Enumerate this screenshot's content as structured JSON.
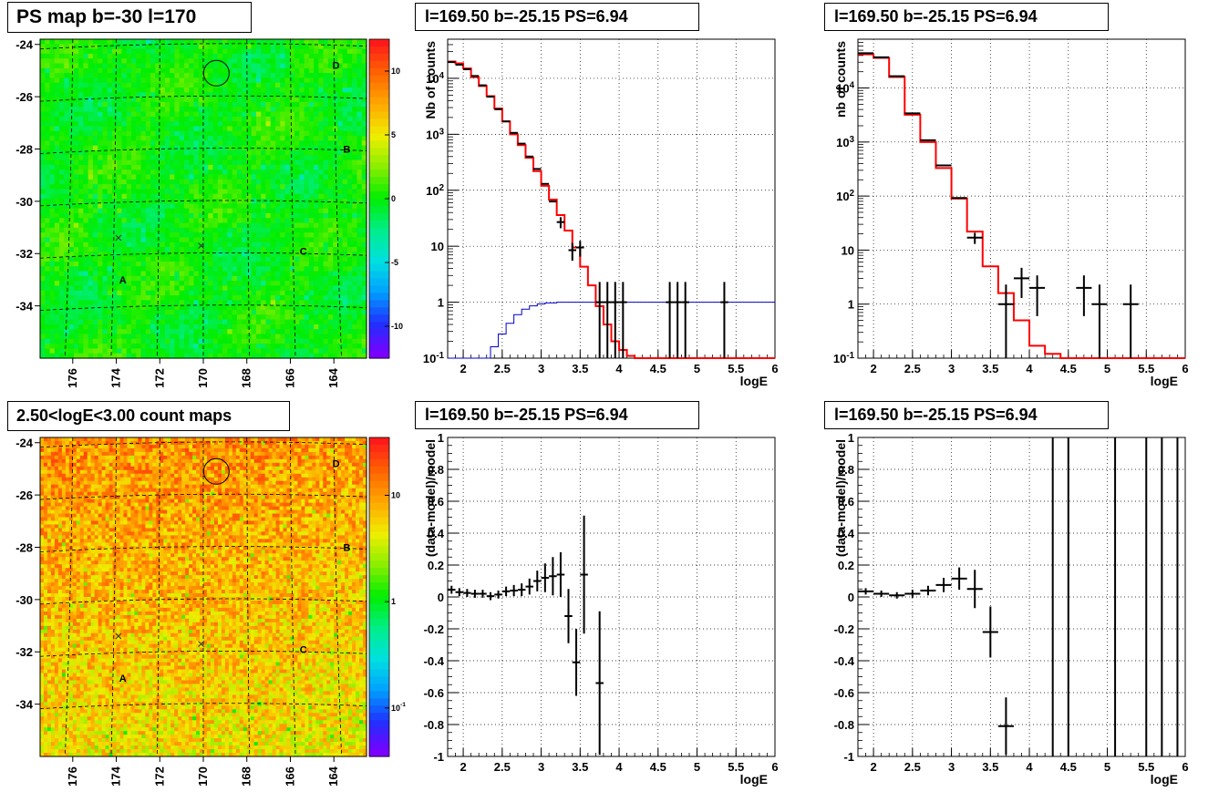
{
  "colors": {
    "data": "#000000",
    "model": "#ff0000",
    "efficiency": "#0000cc",
    "grid": "#000000",
    "palette": [
      "#7b00ff",
      "#2030ff",
      "#00a0ff",
      "#00e0e0",
      "#00ee88",
      "#00ee00",
      "#88ee00",
      "#eeee00",
      "#ffaa00",
      "#ff6600",
      "#ff1a1a"
    ]
  },
  "chart_data": [
    {
      "type": "heatmap",
      "title": "PS map b=-30 l=170",
      "x_ticks": [
        "176",
        "174",
        "172",
        "170",
        "168",
        "166",
        "164"
      ],
      "y_ticks": [
        "-24",
        "-26",
        "-28",
        "-30",
        "-32",
        "-34"
      ],
      "xlim": [
        177.5,
        162.5
      ],
      "ylim": [
        -36,
        -23.8
      ],
      "colorbar_ticks": [
        "10",
        "5",
        "0",
        "-5",
        "-10"
      ],
      "colorbar_values": [
        10,
        5,
        0,
        -5,
        -10
      ],
      "colorbar_range": [
        -12.5,
        12.5
      ],
      "sources": [
        {
          "label": "A",
          "l": 173.7,
          "b": -33.0
        },
        {
          "label": "B",
          "l": 163.4,
          "b": -28.0
        },
        {
          "label": "C",
          "l": 165.4,
          "b": -31.9
        },
        {
          "label": "D",
          "l": 163.9,
          "b": -24.8
        }
      ],
      "crosses": [
        {
          "l": 173.9,
          "b": -31.4
        },
        {
          "l": 170.1,
          "b": -31.7
        }
      ],
      "circle": {
        "l": 169.4,
        "b": -25.1
      }
    },
    {
      "type": "line",
      "title": "l=169.50 b=-25.15 PS=6.94",
      "xlabel": "logE",
      "ylabel": "Nb of counts",
      "log_y": true,
      "xlim": [
        1.8,
        6
      ],
      "ylim": [
        0.1,
        50000
      ],
      "x_ticks": [
        "2",
        "2.5",
        "3",
        "3.5",
        "4",
        "4.5",
        "5",
        "5.5",
        "6"
      ],
      "y_ticks": [
        "10^{-1}",
        "1",
        "10",
        "10^{2}",
        "10^{3}",
        "10^{4}"
      ],
      "model_step": {
        "edges": [
          1.8,
          1.9,
          2.0,
          2.1,
          2.2,
          2.3,
          2.4,
          2.5,
          2.6,
          2.7,
          2.8,
          2.9,
          3.0,
          3.1,
          3.2,
          3.3,
          3.4,
          3.5,
          3.6,
          3.7,
          3.8,
          3.9,
          4.0,
          4.1,
          4.2,
          4.3,
          6.0
        ],
        "values": [
          20000,
          18500,
          15000,
          10500,
          7300,
          4800,
          2900,
          1700,
          1000,
          640,
          380,
          220,
          120,
          68,
          36,
          19,
          9.5,
          4.3,
          2.0,
          0.85,
          0.4,
          0.2,
          0.14,
          0.11,
          0.1,
          0.1
        ]
      },
      "efficiency_step": {
        "edges": [
          1.8,
          2.3,
          2.35,
          2.45,
          2.55,
          2.65,
          2.75,
          2.85,
          2.95,
          3.05,
          3.2,
          6.0
        ],
        "values": [
          0.05,
          0.09,
          0.16,
          0.27,
          0.42,
          0.6,
          0.75,
          0.86,
          0.93,
          0.97,
          1.0
        ]
      },
      "data_points": [
        {
          "x": 1.85,
          "y": 19500,
          "xe": 0.05
        },
        {
          "x": 1.95,
          "y": 17500,
          "xe": 0.05
        },
        {
          "x": 2.05,
          "y": 14500,
          "xe": 0.05
        },
        {
          "x": 2.15,
          "y": 11000,
          "xe": 0.05
        },
        {
          "x": 2.25,
          "y": 7500,
          "xe": 0.05
        },
        {
          "x": 2.35,
          "y": 4700,
          "xe": 0.05
        },
        {
          "x": 2.45,
          "y": 2800,
          "xe": 0.05
        },
        {
          "x": 2.55,
          "y": 1700,
          "xe": 0.05
        },
        {
          "x": 2.65,
          "y": 1060,
          "xe": 0.05
        },
        {
          "x": 2.75,
          "y": 680,
          "xe": 0.05
        },
        {
          "x": 2.85,
          "y": 400,
          "xe": 0.05
        },
        {
          "x": 2.95,
          "y": 240,
          "xe": 0.05
        },
        {
          "x": 3.05,
          "y": 130,
          "xe": 0.05
        },
        {
          "x": 3.15,
          "y": 63,
          "xe": 0.05
        },
        {
          "x": 3.25,
          "y": 27,
          "xe": 0.05,
          "ye": 6
        },
        {
          "x": 3.4,
          "y": 8.5,
          "xe": 0.05,
          "ye": 3
        },
        {
          "x": 3.5,
          "y": 9.5,
          "xe": 0.05,
          "ye": 3
        },
        {
          "x": 3.75,
          "y": 1,
          "xe": 0.05,
          "ylo": 0.1,
          "yhi": 2.3
        },
        {
          "x": 3.85,
          "y": 1,
          "xe": 0.05,
          "ylo": 0.1,
          "yhi": 2.3
        },
        {
          "x": 3.95,
          "y": 1,
          "xe": 0.05,
          "ylo": 0.1,
          "yhi": 2.3
        },
        {
          "x": 4.05,
          "y": 1,
          "xe": 0.05,
          "ylo": 0.1,
          "yhi": 2.3
        },
        {
          "x": 4.65,
          "y": 1,
          "xe": 0.05,
          "ylo": 0.1,
          "yhi": 2.3
        },
        {
          "x": 4.75,
          "y": 1,
          "xe": 0.05,
          "ylo": 0.1,
          "yhi": 2.3
        },
        {
          "x": 4.85,
          "y": 1,
          "xe": 0.05,
          "ylo": 0.1,
          "yhi": 2.3
        },
        {
          "x": 5.35,
          "y": 1,
          "xe": 0.05,
          "ylo": 0.1,
          "yhi": 2.3
        }
      ]
    },
    {
      "type": "line",
      "title": "l=169.50 b=-25.15 PS=6.94",
      "xlabel": "logE",
      "ylabel": "nb of counts",
      "log_y": true,
      "xlim": [
        1.8,
        6
      ],
      "ylim": [
        0.1,
        80000
      ],
      "x_ticks": [
        "2",
        "2.5",
        "3",
        "3.5",
        "4",
        "4.5",
        "5",
        "5.5",
        "6"
      ],
      "y_ticks": [
        "10^{-1}",
        "1",
        "10",
        "10^{2}",
        "10^{3}",
        "10^{4}"
      ],
      "model_step": {
        "edges": [
          1.8,
          2.0,
          2.2,
          2.4,
          2.6,
          2.8,
          3.0,
          3.2,
          3.4,
          3.6,
          3.8,
          4.0,
          4.2,
          4.4,
          6.0
        ],
        "values": [
          42000,
          36000,
          16000,
          3200,
          1000,
          330,
          90,
          22,
          5,
          1.6,
          0.5,
          0.17,
          0.12,
          0.1
        ]
      },
      "data_points": [
        {
          "x": 1.9,
          "y": 44000,
          "xe": 0.1
        },
        {
          "x": 2.1,
          "y": 37000,
          "xe": 0.1
        },
        {
          "x": 2.3,
          "y": 16500,
          "xe": 0.1
        },
        {
          "x": 2.5,
          "y": 3400,
          "xe": 0.1
        },
        {
          "x": 2.7,
          "y": 1080,
          "xe": 0.1
        },
        {
          "x": 2.9,
          "y": 370,
          "xe": 0.1
        },
        {
          "x": 3.1,
          "y": 92,
          "xe": 0.1
        },
        {
          "x": 3.3,
          "y": 17,
          "xe": 0.1,
          "ye": 4
        },
        {
          "x": 3.7,
          "y": 1,
          "xe": 0.1,
          "ylo": 0.1,
          "yhi": 2.3
        },
        {
          "x": 3.9,
          "y": 3,
          "xe": 0.1,
          "ye": 1.7
        },
        {
          "x": 4.1,
          "y": 2,
          "xe": 0.1,
          "ylo": 0.6,
          "yhi": 3.4
        },
        {
          "x": 4.7,
          "y": 2,
          "xe": 0.1,
          "ylo": 0.6,
          "yhi": 3.4
        },
        {
          "x": 4.9,
          "y": 1,
          "xe": 0.1,
          "ylo": 0.1,
          "yhi": 2.3
        },
        {
          "x": 5.3,
          "y": 1,
          "xe": 0.1,
          "ylo": 0.1,
          "yhi": 2.3
        }
      ]
    },
    {
      "type": "heatmap",
      "title": "2.50<logE<3.00 count maps",
      "x_ticks": [
        "176",
        "174",
        "172",
        "170",
        "168",
        "166",
        "164"
      ],
      "y_ticks": [
        "-24",
        "-26",
        "-28",
        "-30",
        "-32",
        "-34"
      ],
      "xlim": [
        177.5,
        162.5
      ],
      "ylim": [
        -36,
        -23.8
      ],
      "colorbar_ticks": [
        "10",
        "1",
        "10^{-1}"
      ],
      "colorbar_values": [
        10,
        1,
        0.1
      ],
      "colorbar_log_range": [
        0.035,
        35
      ],
      "sources": [
        {
          "label": "A",
          "l": 173.7,
          "b": -33.0
        },
        {
          "label": "B",
          "l": 163.4,
          "b": -28.0
        },
        {
          "label": "C",
          "l": 165.4,
          "b": -31.9
        },
        {
          "label": "D",
          "l": 163.9,
          "b": -24.8
        }
      ],
      "crosses": [
        {
          "l": 173.9,
          "b": -31.4
        },
        {
          "l": 170.1,
          "b": -31.7
        }
      ],
      "circle": {
        "l": 169.4,
        "b": -25.1
      }
    },
    {
      "type": "scatter",
      "title": "l=169.50 b=-25.15 PS=6.94",
      "xlabel": "logE",
      "ylabel": "(data-model)/model",
      "xlim": [
        1.8,
        6
      ],
      "ylim": [
        -1,
        1
      ],
      "x_ticks": [
        "2",
        "2.5",
        "3",
        "3.5",
        "4",
        "4.5",
        "5",
        "5.5",
        "6"
      ],
      "y_ticks": [
        "-1",
        "-0.8",
        "-0.6",
        "-0.4",
        "-0.2",
        "0",
        "0.2",
        "0.4",
        "0.6",
        "0.8",
        "1"
      ],
      "data_points": [
        {
          "x": 1.85,
          "y": 0.045,
          "xe": 0.05,
          "ye": 0.025
        },
        {
          "x": 1.95,
          "y": 0.03,
          "xe": 0.05,
          "ye": 0.025
        },
        {
          "x": 2.05,
          "y": 0.025,
          "xe": 0.05,
          "ye": 0.025
        },
        {
          "x": 2.15,
          "y": 0.02,
          "xe": 0.05,
          "ye": 0.025
        },
        {
          "x": 2.25,
          "y": 0.02,
          "xe": 0.05,
          "ye": 0.025
        },
        {
          "x": 2.35,
          "y": 0.005,
          "xe": 0.05,
          "ye": 0.025
        },
        {
          "x": 2.45,
          "y": 0.015,
          "xe": 0.05,
          "ye": 0.025
        },
        {
          "x": 2.55,
          "y": 0.035,
          "xe": 0.05,
          "ye": 0.03
        },
        {
          "x": 2.65,
          "y": 0.04,
          "xe": 0.05,
          "ye": 0.035
        },
        {
          "x": 2.75,
          "y": 0.045,
          "xe": 0.05,
          "ye": 0.04
        },
        {
          "x": 2.85,
          "y": 0.065,
          "xe": 0.05,
          "ye": 0.05
        },
        {
          "x": 2.95,
          "y": 0.1,
          "xe": 0.05,
          "ye": 0.065
        },
        {
          "x": 3.05,
          "y": 0.12,
          "xe": 0.05,
          "ye": 0.09
        },
        {
          "x": 3.15,
          "y": 0.13,
          "xe": 0.05,
          "ye": 0.12
        },
        {
          "x": 3.25,
          "y": 0.14,
          "xe": 0.05,
          "ye": 0.14
        },
        {
          "x": 3.35,
          "y": -0.12,
          "xe": 0.05,
          "ye": 0.17
        },
        {
          "x": 3.45,
          "y": -0.41,
          "xe": 0.05,
          "ye": 0.21
        },
        {
          "x": 3.55,
          "y": 0.14,
          "xe": 0.05,
          "ye": 0.37
        },
        {
          "x": 3.75,
          "y": -0.54,
          "xe": 0.05,
          "ye": 0.45
        }
      ]
    },
    {
      "type": "scatter",
      "title": "l=169.50 b=-25.15 PS=6.94",
      "xlabel": "logE",
      "ylabel": "(data-model)/model",
      "xlim": [
        1.8,
        6
      ],
      "ylim": [
        -1,
        1
      ],
      "x_ticks": [
        "2",
        "2.5",
        "3",
        "3.5",
        "4",
        "4.5",
        "5",
        "5.5",
        "6"
      ],
      "y_ticks": [
        "-1",
        "-0.8",
        "-0.6",
        "-0.4",
        "-0.2",
        "0",
        "0.2",
        "0.4",
        "0.6",
        "0.8",
        "1"
      ],
      "data_points": [
        {
          "x": 1.9,
          "y": 0.035,
          "xe": 0.1,
          "ye": 0.02
        },
        {
          "x": 2.1,
          "y": 0.02,
          "xe": 0.1,
          "ye": 0.02
        },
        {
          "x": 2.3,
          "y": 0.01,
          "xe": 0.1,
          "ye": 0.02
        },
        {
          "x": 2.5,
          "y": 0.02,
          "xe": 0.1,
          "ye": 0.025
        },
        {
          "x": 2.7,
          "y": 0.04,
          "xe": 0.1,
          "ye": 0.03
        },
        {
          "x": 2.9,
          "y": 0.075,
          "xe": 0.1,
          "ye": 0.045
        },
        {
          "x": 3.1,
          "y": 0.115,
          "xe": 0.1,
          "ye": 0.07
        },
        {
          "x": 3.3,
          "y": 0.05,
          "xe": 0.1,
          "ye": 0.12
        },
        {
          "x": 3.5,
          "y": -0.22,
          "xe": 0.1,
          "ye": 0.16
        },
        {
          "x": 3.7,
          "y": -0.81,
          "xe": 0.1,
          "ye": 0.18
        },
        {
          "x": 4.3,
          "y": 0,
          "xe": 0,
          "ylo": -1,
          "yhi": 1
        },
        {
          "x": 4.5,
          "y": 0,
          "xe": 0,
          "ylo": -1,
          "yhi": 1
        },
        {
          "x": 5.1,
          "y": 0,
          "xe": 0,
          "ylo": -1,
          "yhi": 1
        },
        {
          "x": 5.5,
          "y": 0,
          "xe": 0,
          "ylo": -1,
          "yhi": 1
        },
        {
          "x": 5.7,
          "y": 0,
          "xe": 0,
          "ylo": -1,
          "yhi": 1
        },
        {
          "x": 5.9,
          "y": 0,
          "xe": 0,
          "ylo": -1,
          "yhi": 1
        }
      ]
    }
  ]
}
